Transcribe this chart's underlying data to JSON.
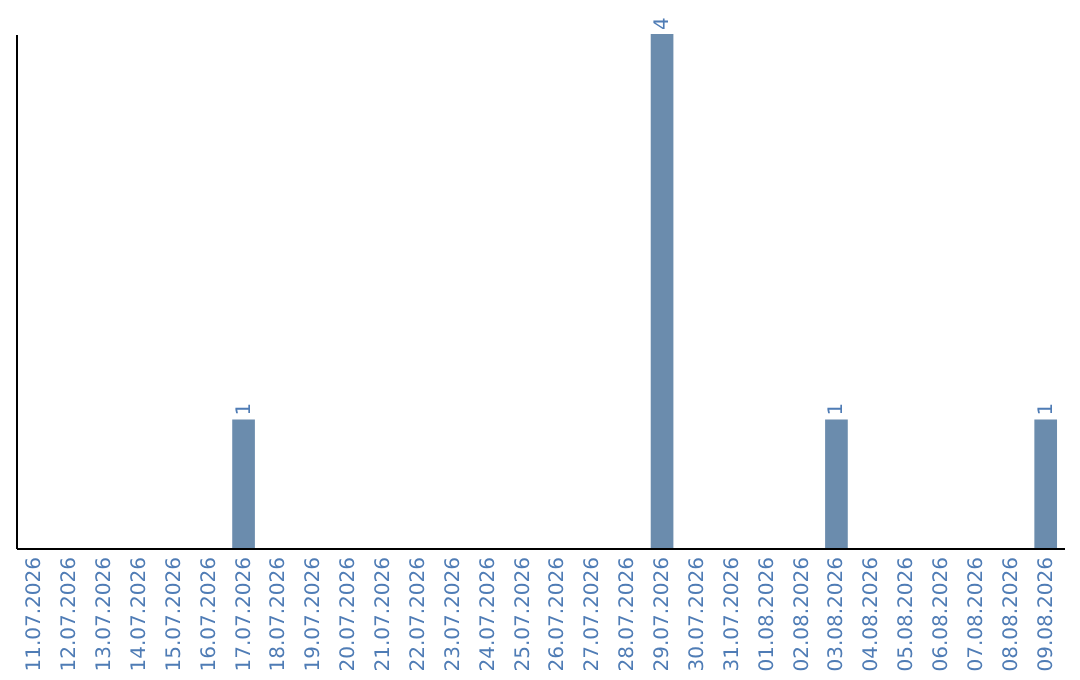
{
  "chart_data": {
    "type": "bar",
    "categories": [
      "11.07.2026",
      "12.07.2026",
      "13.07.2026",
      "14.07.2026",
      "15.07.2026",
      "16.07.2026",
      "17.07.2026",
      "18.07.2026",
      "19.07.2026",
      "20.07.2026",
      "21.07.2026",
      "22.07.2026",
      "23.07.2026",
      "24.07.2026",
      "25.07.2026",
      "26.07.2026",
      "27.07.2026",
      "28.07.2026",
      "29.07.2026",
      "30.07.2026",
      "31.07.2026",
      "01.08.2026",
      "02.08.2026",
      "03.08.2026",
      "04.08.2026",
      "05.08.2026",
      "06.08.2026",
      "07.08.2026",
      "08.08.2026",
      "09.08.2026"
    ],
    "values": [
      0,
      0,
      0,
      0,
      0,
      0,
      1,
      0,
      0,
      0,
      0,
      0,
      0,
      0,
      0,
      0,
      0,
      0,
      4,
      0,
      0,
      0,
      0,
      1,
      0,
      0,
      0,
      0,
      0,
      1
    ],
    "value_labels": [
      null,
      null,
      null,
      null,
      null,
      null,
      "1",
      null,
      null,
      null,
      null,
      null,
      null,
      null,
      null,
      null,
      null,
      null,
      "4",
      null,
      null,
      null,
      null,
      "1",
      null,
      null,
      null,
      null,
      null,
      "1"
    ],
    "color": "#6b8cad",
    "grid": false
  }
}
